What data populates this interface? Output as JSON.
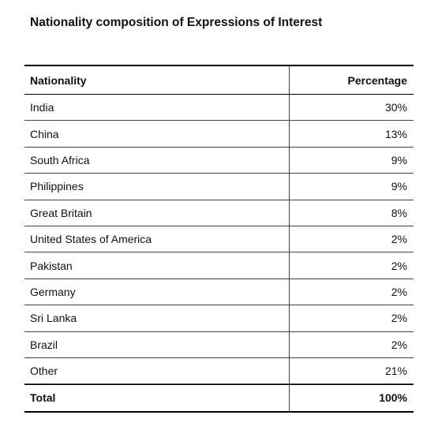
{
  "title": "Nationality composition of Expressions of Interest",
  "table": {
    "headers": {
      "nationality": "Nationality",
      "percentage": "Percentage"
    },
    "rows": [
      {
        "nationality": "India",
        "percentage": "30%"
      },
      {
        "nationality": "China",
        "percentage": "13%"
      },
      {
        "nationality": "South Africa",
        "percentage": "9%"
      },
      {
        "nationality": "Philippines",
        "percentage": "9%"
      },
      {
        "nationality": "Great Britain",
        "percentage": "8%"
      },
      {
        "nationality": "United States of America",
        "percentage": "2%"
      },
      {
        "nationality": "Pakistan",
        "percentage": "2%"
      },
      {
        "nationality": "Germany",
        "percentage": "2%"
      },
      {
        "nationality": "Sri Lanka",
        "percentage": "2%"
      },
      {
        "nationality": "Brazil",
        "percentage": "2%"
      },
      {
        "nationality": "Other",
        "percentage": "21%"
      }
    ],
    "total": {
      "nationality": "Total",
      "percentage": "100%"
    }
  }
}
